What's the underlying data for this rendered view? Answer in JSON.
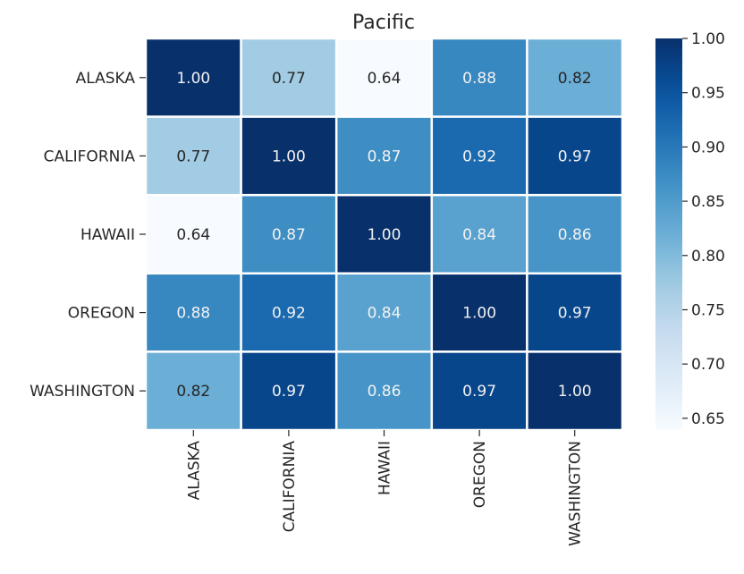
{
  "chart_data": {
    "type": "heatmap",
    "title": "Pacific",
    "xlabel": "",
    "ylabel": "",
    "row_labels": [
      "ALASKA",
      "CALIFORNIA",
      "HAWAII",
      "OREGON",
      "WASHINGTON"
    ],
    "col_labels": [
      "ALASKA",
      "CALIFORNIA",
      "HAWAII",
      "OREGON",
      "WASHINGTON"
    ],
    "values": [
      [
        1.0,
        0.77,
        0.64,
        0.88,
        0.82
      ],
      [
        0.77,
        1.0,
        0.87,
        0.92,
        0.97
      ],
      [
        0.64,
        0.87,
        1.0,
        0.84,
        0.86
      ],
      [
        0.88,
        0.92,
        0.84,
        1.0,
        0.97
      ],
      [
        0.82,
        0.97,
        0.86,
        0.97,
        1.0
      ]
    ],
    "value_format": "0.00",
    "colormap": "Blues",
    "colorbar": {
      "vmin": 0.64,
      "vmax": 1.0,
      "ticks": [
        0.65,
        0.7,
        0.75,
        0.8,
        0.85,
        0.9,
        0.95,
        1.0
      ],
      "tick_labels": [
        "0.65",
        "0.70",
        "0.75",
        "0.80",
        "0.85",
        "0.90",
        "0.95",
        "1.00"
      ]
    },
    "cell_border_color": "#ffffff",
    "grid": false
  }
}
